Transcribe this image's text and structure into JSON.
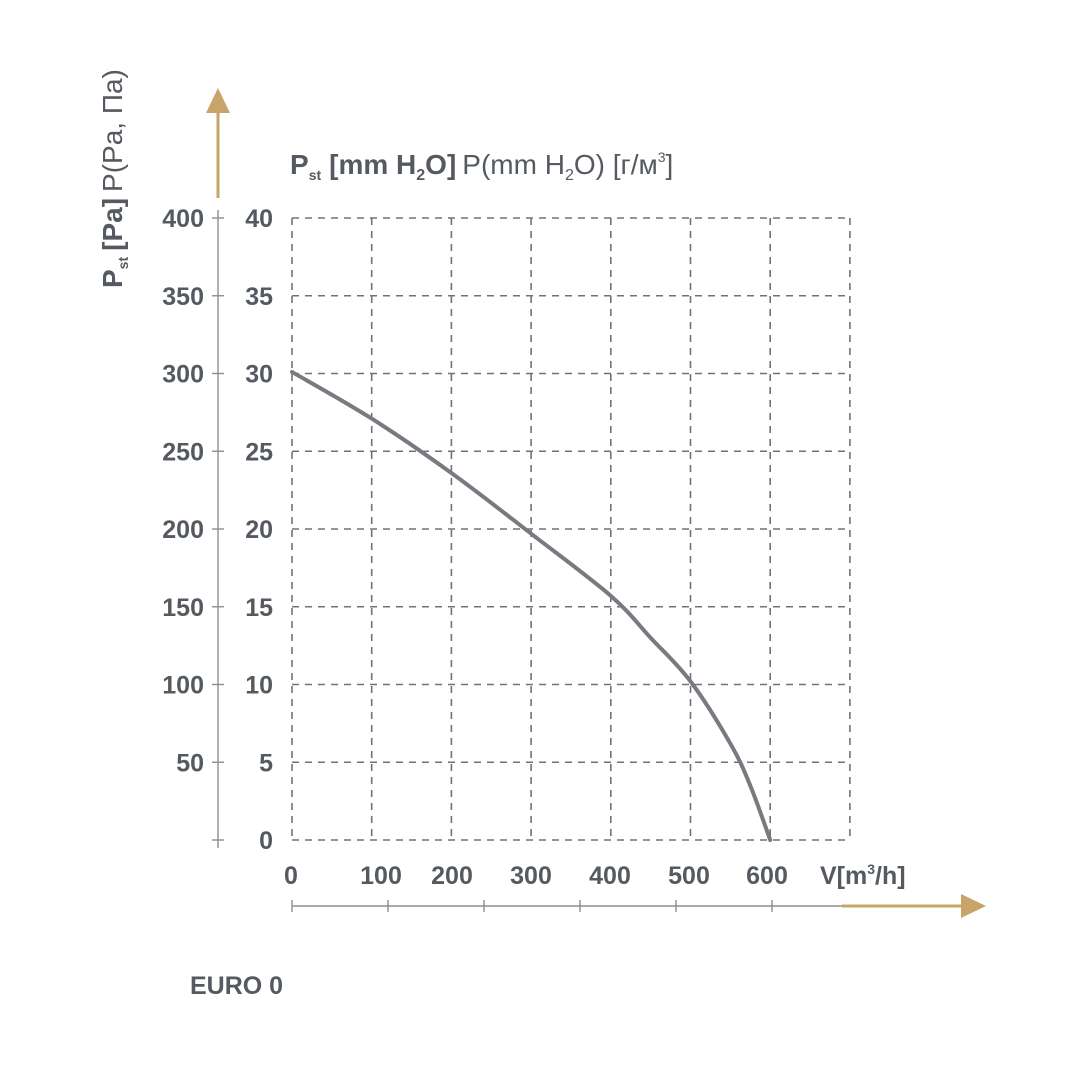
{
  "model_label": "EURO 0",
  "colors": {
    "accent": "#c8a46b",
    "curve": "#777b80",
    "text": "#555a60",
    "grid": "#6f7378"
  },
  "chart_data": {
    "type": "line",
    "title_main": "P",
    "title_sub": "st",
    "title_rest_bold": "[mm H",
    "title_rest_bold_sub": "2",
    "title_rest_bold_end": "O]",
    "title_rest_light": "P(mm H",
    "title_rest_light_sub": "2",
    "title_rest_light_end": "O) [г/м",
    "title_rest_light_sup": "3",
    "title_rest_light_close": "]",
    "ylabel_main": "P",
    "ylabel_sub": "st",
    "ylabel_bold": "[Pa]",
    "ylabel_light": "P(Pa, Па)",
    "xlabel": "V[m",
    "xlabel_sup": "3",
    "xlabel_end": "/h]",
    "x_ticks": [
      "0",
      "100",
      "200",
      "300",
      "400",
      "500",
      "600"
    ],
    "y_ticks_pa": [
      "400",
      "350",
      "300",
      "250",
      "200",
      "150",
      "100",
      "50"
    ],
    "y_ticks_mm": [
      "40",
      "35",
      "30",
      "25",
      "20",
      "15",
      "10",
      "5",
      "0"
    ],
    "xlim": [
      0,
      700
    ],
    "ylim": [
      0,
      400
    ],
    "grid": true,
    "series": [
      {
        "x": [
          0,
          100,
          200,
          300,
          400,
          450,
          500,
          550,
          575,
          600
        ],
        "y": [
          301,
          271,
          236,
          197,
          157,
          130,
          102,
          62,
          35,
          0
        ]
      }
    ]
  }
}
